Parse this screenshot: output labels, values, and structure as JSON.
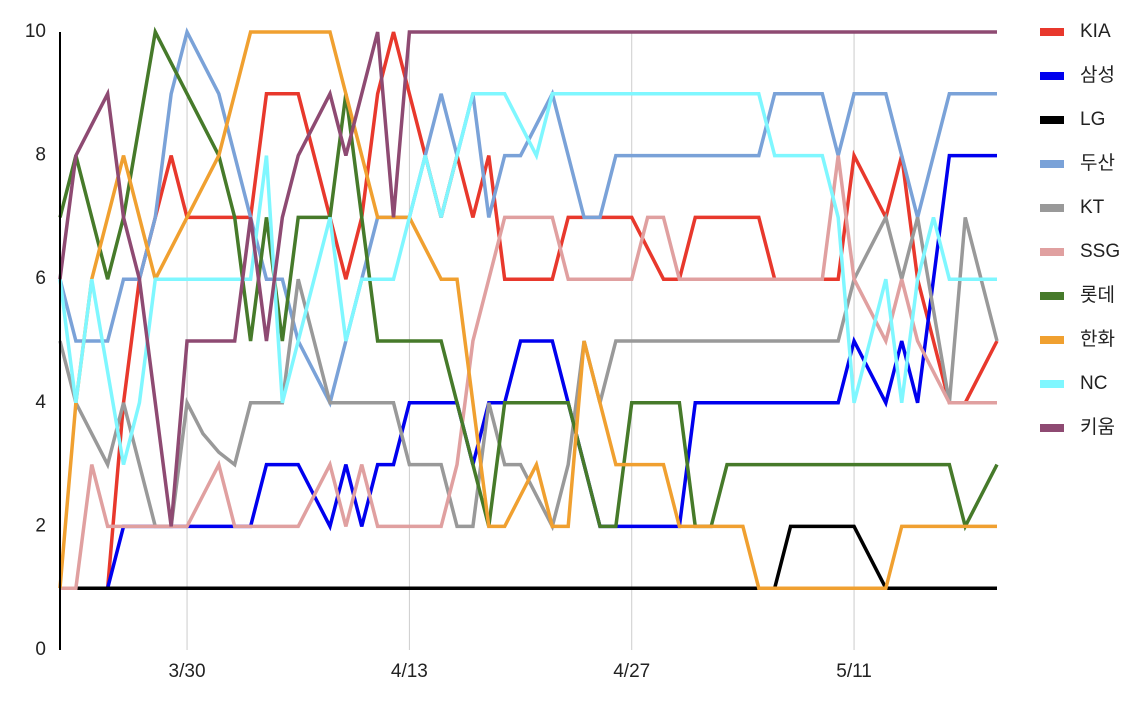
{
  "chart_data": {
    "type": "line",
    "x": [
      "3/22",
      "3/23",
      "3/24",
      "3/25",
      "3/26",
      "3/27",
      "3/28",
      "3/29",
      "3/30",
      "3/31",
      "4/1",
      "4/2",
      "4/3",
      "4/4",
      "4/5",
      "4/6",
      "4/7",
      "4/8",
      "4/9",
      "4/10",
      "4/11",
      "4/12",
      "4/13",
      "4/14",
      "4/15",
      "4/16",
      "4/17",
      "4/18",
      "4/19",
      "4/20",
      "4/21",
      "4/22",
      "4/23",
      "4/24",
      "4/25",
      "4/26",
      "4/27",
      "4/28",
      "4/29",
      "4/30",
      "5/1",
      "5/2",
      "5/3",
      "5/4",
      "5/5",
      "5/6",
      "5/7",
      "5/8",
      "5/9",
      "5/10",
      "5/11",
      "5/12",
      "5/13",
      "5/14",
      "5/15",
      "5/16",
      "5/17",
      "5/18",
      "5/19",
      "5/20"
    ],
    "xticks": [
      "3/30",
      "4/13",
      "4/27",
      "5/11"
    ],
    "ylim": [
      0,
      10
    ],
    "yticks": [
      0,
      2,
      4,
      6,
      8,
      10
    ],
    "xgrid": true,
    "legend": "right",
    "series": [
      {
        "name": "KIA",
        "color": "#e8382c",
        "values": [
          1,
          1,
          1,
          1,
          4,
          6,
          7,
          8,
          7,
          7,
          7,
          7,
          7,
          9,
          9,
          9,
          8,
          7,
          6,
          7,
          9,
          10,
          9,
          8,
          7,
          8,
          7,
          8,
          6,
          6,
          6,
          6,
          7,
          7,
          7,
          7,
          7,
          6.5,
          6,
          6,
          7,
          7,
          7,
          7,
          7,
          6,
          6,
          6,
          6,
          6,
          8,
          7.5,
          7,
          8,
          6,
          5,
          4,
          4,
          4.5,
          5
        ]
      },
      {
        "name": "삼성",
        "color": "#0000ee",
        "values": [
          1,
          1,
          1,
          1,
          2,
          2,
          2,
          2,
          2,
          2,
          2,
          2,
          2,
          3,
          3,
          3,
          2.5,
          2,
          3,
          2,
          3,
          3,
          4,
          4,
          4,
          4,
          3,
          4,
          4,
          5,
          5,
          5,
          4,
          3,
          2,
          2,
          2,
          2,
          2,
          2,
          4,
          4,
          4,
          4,
          4,
          4,
          4,
          4,
          4,
          4,
          5,
          4.5,
          4,
          5,
          4,
          6,
          8,
          8,
          8,
          8
        ]
      },
      {
        "name": "LG",
        "color": "#000000",
        "values": [
          1,
          1,
          1,
          1,
          1,
          1,
          1,
          1,
          1,
          1,
          1,
          1,
          1,
          1,
          1,
          1,
          1,
          1,
          1,
          1,
          1,
          1,
          1,
          1,
          1,
          1,
          1,
          1,
          1,
          1,
          1,
          1,
          1,
          1,
          1,
          1,
          1,
          1,
          1,
          1,
          1,
          1,
          1,
          1,
          1,
          1,
          2,
          2,
          2,
          2,
          2,
          1.5,
          1,
          1,
          1,
          1,
          1,
          1,
          1,
          1
        ]
      },
      {
        "name": "두산",
        "color": "#7aa2d8",
        "values": [
          6,
          5,
          5,
          5,
          6,
          6,
          7,
          9,
          10,
          9.5,
          9,
          8,
          7,
          6,
          6,
          5,
          4.5,
          4,
          5,
          6,
          7,
          7,
          7,
          8,
          9,
          8,
          9,
          7,
          8,
          8,
          8.5,
          9,
          8,
          7,
          7,
          8,
          8,
          8,
          8,
          8,
          8,
          8,
          8,
          8,
          8,
          9,
          9,
          9,
          9,
          8,
          9,
          9,
          9,
          8,
          7,
          8,
          9,
          9,
          9,
          9
        ]
      },
      {
        "name": "KT",
        "color": "#999999",
        "values": [
          5,
          4,
          3.5,
          3,
          4,
          3,
          2,
          2,
          4,
          3.5,
          3.2,
          3,
          4,
          4,
          4,
          6,
          5,
          4,
          4,
          4,
          4,
          4,
          3,
          3,
          3,
          2,
          2,
          4,
          3,
          3,
          2.5,
          2,
          3,
          5,
          4,
          5,
          5,
          5,
          5,
          5,
          5,
          5,
          5,
          5,
          5,
          5,
          5,
          5,
          5,
          5,
          6,
          6.5,
          7,
          6,
          7,
          5.5,
          4,
          7,
          6,
          5
        ]
      },
      {
        "name": "SSG",
        "color": "#e0a0a0",
        "values": [
          1,
          1,
          3,
          2,
          2,
          2,
          2,
          2,
          2,
          2.5,
          3,
          2,
          2,
          2,
          2,
          2,
          2.5,
          3,
          2,
          3,
          2,
          2,
          2,
          2,
          2,
          3,
          5,
          6,
          7,
          7,
          7,
          7,
          6,
          6,
          6,
          6,
          6,
          7,
          7,
          6,
          6,
          6,
          6,
          6,
          6,
          6,
          6,
          6,
          6,
          8,
          6,
          5.5,
          5,
          6,
          5,
          4.5,
          4,
          4,
          4,
          4
        ]
      },
      {
        "name": "롯데",
        "color": "#467a2a",
        "values": [
          7,
          8,
          7,
          6,
          7,
          8.5,
          10,
          9.5,
          9,
          8.5,
          8,
          7,
          5,
          7,
          5,
          7,
          7,
          7,
          9,
          7,
          5,
          5,
          5,
          5,
          5,
          4,
          3,
          2,
          4,
          4,
          4,
          4,
          4,
          3,
          2,
          2,
          4,
          4,
          4,
          4,
          2,
          2,
          3,
          3,
          3,
          3,
          3,
          3,
          3,
          3,
          3,
          3,
          3,
          3,
          3,
          3,
          3,
          2,
          2.5,
          3
        ]
      },
      {
        "name": "한화",
        "color": "#f0a030",
        "values": [
          1,
          4,
          6,
          7,
          8,
          7,
          6,
          6.5,
          7,
          7.5,
          8,
          9,
          10,
          10,
          10,
          10,
          10,
          10,
          9,
          8,
          7,
          7,
          7,
          6.5,
          6,
          6,
          4,
          2,
          2,
          2.5,
          3,
          2,
          2,
          5,
          4,
          3,
          3,
          3,
          3,
          2,
          2,
          2,
          2,
          2,
          1,
          1,
          1,
          1,
          1,
          1,
          1,
          1,
          1,
          2,
          2,
          2,
          2,
          2,
          2,
          2
        ]
      },
      {
        "name": "NC",
        "color": "#7ff7ff",
        "values": [
          6,
          4,
          6,
          4.5,
          3,
          4,
          6,
          6,
          6,
          6,
          6,
          6,
          6,
          8,
          4,
          5,
          6,
          7,
          5,
          6,
          6,
          6,
          7,
          8,
          7,
          8,
          9,
          9,
          9,
          8.5,
          8,
          9,
          9,
          9,
          9,
          9,
          9,
          9,
          9,
          9,
          9,
          9,
          9,
          9,
          9,
          8,
          8,
          8,
          8,
          7,
          4,
          5,
          6,
          4,
          6,
          7,
          6,
          6,
          6,
          6
        ]
      },
      {
        "name": "키움",
        "color": "#8e4a72",
        "values": [
          6,
          8,
          8.5,
          9,
          7,
          6,
          4,
          2,
          5,
          5,
          5,
          5,
          7,
          5,
          7,
          8,
          8.5,
          9,
          8,
          9,
          10,
          7,
          10,
          10,
          10,
          10,
          10,
          10,
          10,
          10,
          10,
          10,
          10,
          10,
          10,
          10,
          10,
          10,
          10,
          10,
          10,
          10,
          10,
          10,
          10,
          10,
          10,
          10,
          10,
          10,
          10,
          10,
          10,
          10,
          10,
          10,
          10,
          10,
          10,
          10
        ]
      }
    ]
  }
}
